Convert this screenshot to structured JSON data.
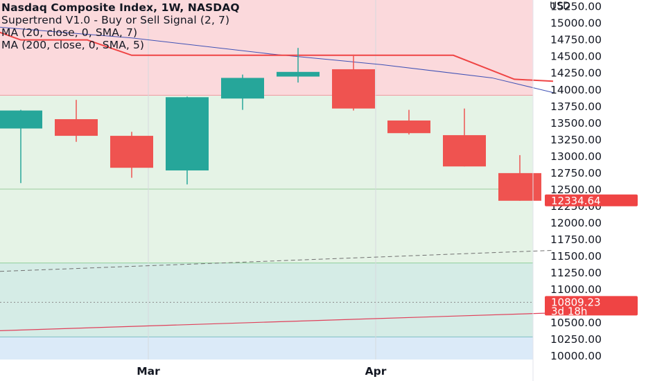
{
  "legend": {
    "title": "Nasdaq Composite Index, 1W, NASDAQ",
    "line2": "Supertrend V1.0 - Buy or Sell Signal (2, 7)",
    "line3": "MA (20, close, 0, SMA, 7)",
    "line4": "MA (200, close, 0, SMA, 5)"
  },
  "currency": "USD",
  "colors": {
    "up": "#26a69a",
    "down": "#ef5350",
    "supertrend": "#ef4444",
    "ma20": "#3f51b5",
    "ma200": "#e0405a",
    "zone_red": "#fbd9dc",
    "zone_green": "#e5f3e6",
    "zone_teal": "#d5ece6",
    "zone_blue": "#dbeaf8"
  },
  "price_badges": [
    {
      "value": "12334.64",
      "color": "#ef4444"
    },
    {
      "value": "10809.23",
      "sub": "3d 18h",
      "color": "#ef4444"
    }
  ],
  "chart_data": {
    "type": "candlestick",
    "title": "Nasdaq Composite Index, 1W, NASDAQ",
    "y_range": [
      9950,
      15350
    ],
    "y_ticks": [
      "15250.00",
      "15000.00",
      "14750.00",
      "14500.00",
      "14250.00",
      "14000.00",
      "13750.00",
      "13500.00",
      "13250.00",
      "13000.00",
      "12750.00",
      "12500.00",
      "12250.00",
      "12000.00",
      "11750.00",
      "11500.00",
      "11250.00",
      "11000.00",
      "10750.00",
      "10500.00",
      "10250.00",
      "10000.00"
    ],
    "x_ticks": [
      {
        "label": "Mar",
        "index": 2.3
      },
      {
        "label": "Apr",
        "index": 6.4
      }
    ],
    "candles": [
      {
        "open": 13420,
        "high": 13700,
        "low": 12600,
        "close": 13690
      },
      {
        "open": 13560,
        "high": 13850,
        "low": 13220,
        "close": 13310
      },
      {
        "open": 13310,
        "high": 13370,
        "low": 12680,
        "close": 12830
      },
      {
        "open": 12790,
        "high": 13900,
        "low": 12580,
        "close": 13890
      },
      {
        "open": 13870,
        "high": 14230,
        "low": 13700,
        "close": 14180
      },
      {
        "open": 14200,
        "high": 14630,
        "low": 14110,
        "close": 14270
      },
      {
        "open": 14310,
        "high": 14530,
        "low": 13690,
        "close": 13720
      },
      {
        "open": 13540,
        "high": 13700,
        "low": 13330,
        "close": 13350
      },
      {
        "open": 13320,
        "high": 13720,
        "low": 12850,
        "close": 12850
      },
      {
        "open": 12750,
        "high": 13020,
        "low": 12334.64,
        "close": 12334.64
      }
    ],
    "supertrend": [
      {
        "x": -0.5,
        "y": 14900
      },
      {
        "x": 0.0,
        "y": 14750
      },
      {
        "x": 1.2,
        "y": 14750
      },
      {
        "x": 2.0,
        "y": 14520
      },
      {
        "x": 7.8,
        "y": 14520
      },
      {
        "x": 8.9,
        "y": 14160
      },
      {
        "x": 9.6,
        "y": 14130
      }
    ],
    "ma20": [
      {
        "x": -0.5,
        "y": 14950
      },
      {
        "x": 2.0,
        "y": 14780
      },
      {
        "x": 4.5,
        "y": 14540
      },
      {
        "x": 6.5,
        "y": 14380
      },
      {
        "x": 8.5,
        "y": 14180
      },
      {
        "x": 9.6,
        "y": 13960
      }
    ],
    "ma200_extension": [
      {
        "x": -0.5,
        "y": 11270
      },
      {
        "x": 9.6,
        "y": 11590
      }
    ],
    "ma200": [
      {
        "x": -0.5,
        "y": 10380
      },
      {
        "x": 9.6,
        "y": 10650
      }
    ],
    "price_lines": [
      12334.64,
      10809.23
    ],
    "zones": [
      {
        "from": 13920,
        "to": 15350,
        "color": "red"
      },
      {
        "from": 12510,
        "to": 13920,
        "color": "green"
      },
      {
        "from": 11400,
        "to": 12510,
        "color": "green"
      },
      {
        "from": 10290,
        "to": 11400,
        "color": "teal"
      },
      {
        "from": 9950,
        "to": 10290,
        "color": "blue"
      }
    ]
  }
}
